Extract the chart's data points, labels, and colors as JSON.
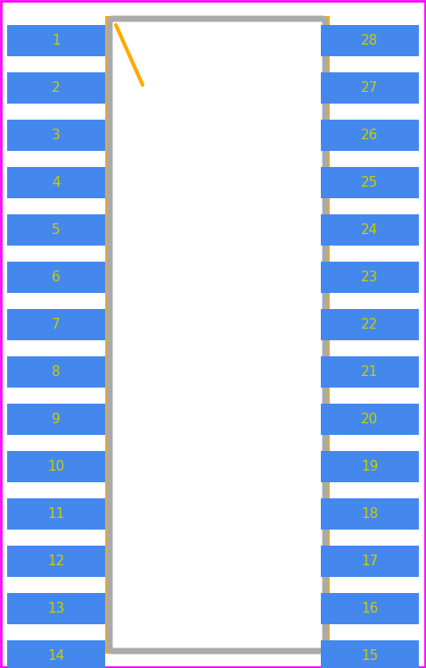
{
  "bg_color": "#ffffff",
  "border_color": "#ff00ff",
  "body_fill": "#ffffff",
  "body_stroke": "#aaaaaa",
  "pad_color": "#4488ee",
  "pad_text_color": "#cccc00",
  "orange_color": "#ffaa00",
  "num_pins_per_side": 14,
  "left_pins": [
    1,
    2,
    3,
    4,
    5,
    6,
    7,
    8,
    9,
    10,
    11,
    12,
    13,
    14
  ],
  "right_pins": [
    28,
    27,
    26,
    25,
    24,
    23,
    22,
    21,
    20,
    19,
    18,
    17,
    16,
    15
  ],
  "fig_width": 4.78,
  "fig_height": 7.48,
  "dpi": 100
}
